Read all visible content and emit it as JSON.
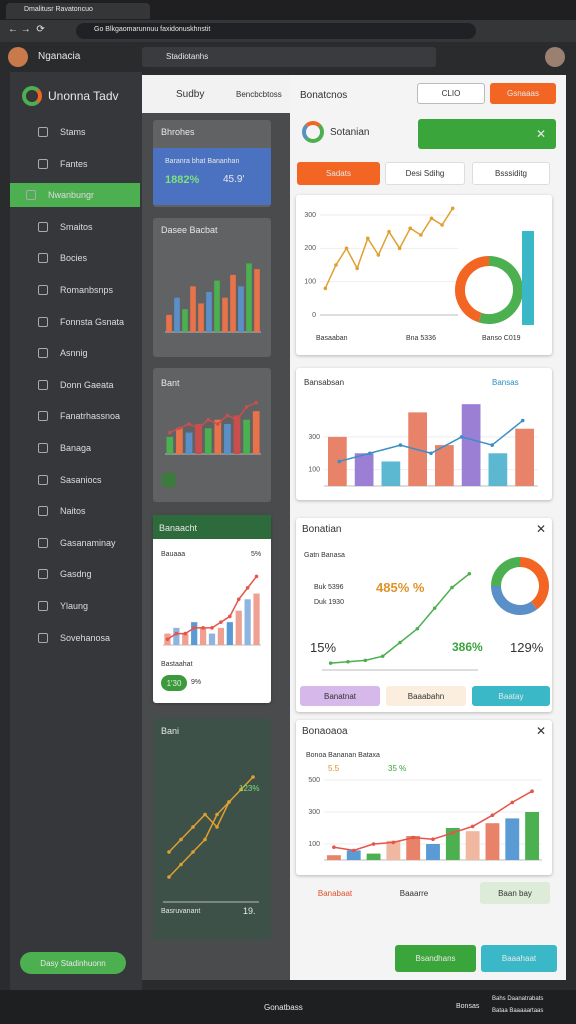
{
  "browser": {
    "tab": "Dmalitusr Ravatoncuo",
    "url": "Go Blkgaomarunnuu faxidonuskhnstit"
  },
  "header": {
    "app": "Nganacia",
    "search": "Stadiotanhs"
  },
  "sidebar": {
    "title": "Unonna Tadv",
    "items": [
      "Stams",
      "Fantes",
      "Nwanbungr",
      "Smaitos",
      "Bocies",
      "Romanbsnps",
      "Fonnsta Gsnata",
      "Asnnig",
      "Donn Gaeata",
      "Fanatrhassnoa",
      "Banaga",
      "Sasaniocs",
      "Naitos",
      "Gasanaminay",
      "Gasdng",
      "Ylaung",
      "Sovehanosa"
    ],
    "button": "Dasy Stadinhuonn"
  },
  "middle": {
    "tabs": [
      "Sudby",
      "Bencbcbtoss"
    ],
    "cards": [
      {
        "title": "Bhrohes",
        "kpi_label": "Baranra bhat Bananhan",
        "kpi": [
          "1882%",
          "45.9'"
        ]
      },
      {
        "title": "Dasee Bacbat"
      },
      {
        "title": "Bant"
      },
      {
        "title": "Banaacht",
        "legend": "Bauaaa",
        "badge": "5%",
        "foot": "Bastaahat",
        "pill": "1'30",
        "pill2": "9%"
      },
      {
        "title": "Bani",
        "v1": "123%",
        "label": "Basruvanant",
        "v2": "19."
      }
    ]
  },
  "panel": {
    "title": "Bonatcnos",
    "select": "CLIO",
    "button": "Gsnaaas",
    "section": "Sotanian",
    "chips": [
      "Sadats",
      "Desi Sdihg",
      "Bsssiditg"
    ],
    "chart_a_legend": [
      "Basaaban",
      "Bna 5336",
      "Banso C019"
    ],
    "chart_b": {
      "title": "Bansabsan",
      "badge": "Bansas"
    },
    "chart_c": {
      "title": "Bonatian",
      "sub": "Gatn Banasa",
      "legend": [
        "Buk 5396",
        "Duk 1930"
      ],
      "kpi": [
        "485% %",
        "15%",
        "386%",
        "129%"
      ],
      "buttons": [
        "Banatnat",
        "Baaabahn",
        "Baatay"
      ]
    },
    "chart_d": {
      "title": "Bonaoaoa",
      "sub": "Bonoa Bananan Bataxa",
      "labels": [
        "5.5",
        "35 %"
      ]
    },
    "footer_items": [
      "Banabaat",
      "Baaarre",
      "Baan bay"
    ],
    "actions": [
      "Bsandhans",
      "Baaahaat"
    ]
  },
  "footer": {
    "center": "Gonatbass",
    "right": "Bonsas",
    "far": [
      "Bahs Daanatrabats",
      "Bataa Baaaaartaas"
    ]
  },
  "chart_data": [
    {
      "type": "bar",
      "colors": [
        "#e8734a",
        "#5b8fc7",
        "#4caf50",
        "#e8734a"
      ],
      "ylim": [
        0,
        14
      ],
      "series": [
        {
          "values": [
            3,
            6,
            4,
            8,
            5,
            7,
            9,
            6,
            10,
            8,
            12,
            11
          ]
        }
      ]
    },
    {
      "type": "combo",
      "colors": [
        "#4caf50",
        "#e8734a",
        "#5b8fc7",
        "#c94f4f"
      ],
      "ylim": [
        0,
        14
      ],
      "series": [
        {
          "values": [
            4,
            6,
            5,
            7,
            6,
            8,
            7,
            9,
            8,
            10
          ]
        },
        {
          "color": "#c94f4f",
          "values": [
            5,
            6,
            7,
            6,
            8,
            7,
            9,
            8,
            11,
            12
          ]
        }
      ]
    },
    {
      "type": "combo",
      "colors": [
        "#f0a090",
        "#8fb4e0",
        "#f0a090",
        "#5b9bd5"
      ],
      "ylim": [
        0,
        14
      ],
      "series": [
        {
          "values": [
            2,
            3,
            2,
            4,
            3,
            2,
            3,
            4,
            6,
            8,
            9
          ]
        },
        {
          "color": "#e8534a",
          "values": [
            1,
            2,
            2,
            3,
            3,
            3,
            4,
            5,
            8,
            10,
            12
          ]
        }
      ]
    },
    {
      "type": "line",
      "ylim": [
        0,
        12
      ],
      "series": [
        {
          "color": "#e0a030",
          "values": [
            4,
            5,
            6,
            7,
            6,
            8,
            9,
            10
          ]
        },
        {
          "color": "#e0a030",
          "values": [
            2,
            3,
            4,
            5,
            7,
            8
          ]
        }
      ]
    },
    {
      "type": "line",
      "ylim": [
        0,
        330
      ],
      "yticks": [
        0,
        100,
        200,
        300
      ],
      "series": [
        {
          "color": "#e0a030",
          "values": [
            80,
            150,
            200,
            140,
            230,
            180,
            250,
            200,
            260,
            240,
            290,
            270,
            320
          ]
        }
      ]
    },
    {
      "type": "donut",
      "series": [
        {
          "color": "#4caf50",
          "values": [
            55
          ]
        },
        {
          "color": "#f26522",
          "values": [
            45
          ]
        }
      ]
    },
    {
      "type": "combo",
      "colors": [
        "#e8836a",
        "#9b7fd4",
        "#5bb8d0",
        "#e8836a"
      ],
      "ylim": [
        0,
        550
      ],
      "yticks": [
        100,
        300
      ],
      "series": [
        {
          "values": [
            300,
            200,
            150,
            450,
            250,
            500,
            200,
            350
          ]
        },
        {
          "color": "#3a8fc7",
          "values": [
            150,
            200,
            250,
            200,
            300,
            250,
            400
          ]
        }
      ]
    },
    {
      "type": "line",
      "ylim": [
        0,
        80
      ],
      "series": [
        {
          "color": "#4caf50",
          "values": [
            5,
            6,
            7,
            10,
            20,
            30,
            45,
            60,
            70
          ]
        }
      ]
    },
    {
      "type": "donut",
      "series": [
        {
          "color": "#f26522",
          "values": [
            40
          ]
        },
        {
          "color": "#5b8fc7",
          "values": [
            35
          ]
        },
        {
          "color": "#4caf50",
          "values": [
            25
          ]
        }
      ]
    },
    {
      "type": "combo",
      "colors": [
        "#e8836a",
        "#5b9bd5",
        "#4caf50",
        "#f0b8a0"
      ],
      "ylim": [
        0,
        500
      ],
      "yticks": [
        100,
        300,
        500
      ],
      "series": [
        {
          "values": [
            30,
            60,
            40,
            120,
            150,
            100,
            200,
            180,
            230,
            260,
            300
          ]
        },
        {
          "color": "#e8534a",
          "values": [
            80,
            60,
            100,
            110,
            140,
            130,
            170,
            210,
            280,
            360,
            430
          ]
        }
      ]
    }
  ]
}
